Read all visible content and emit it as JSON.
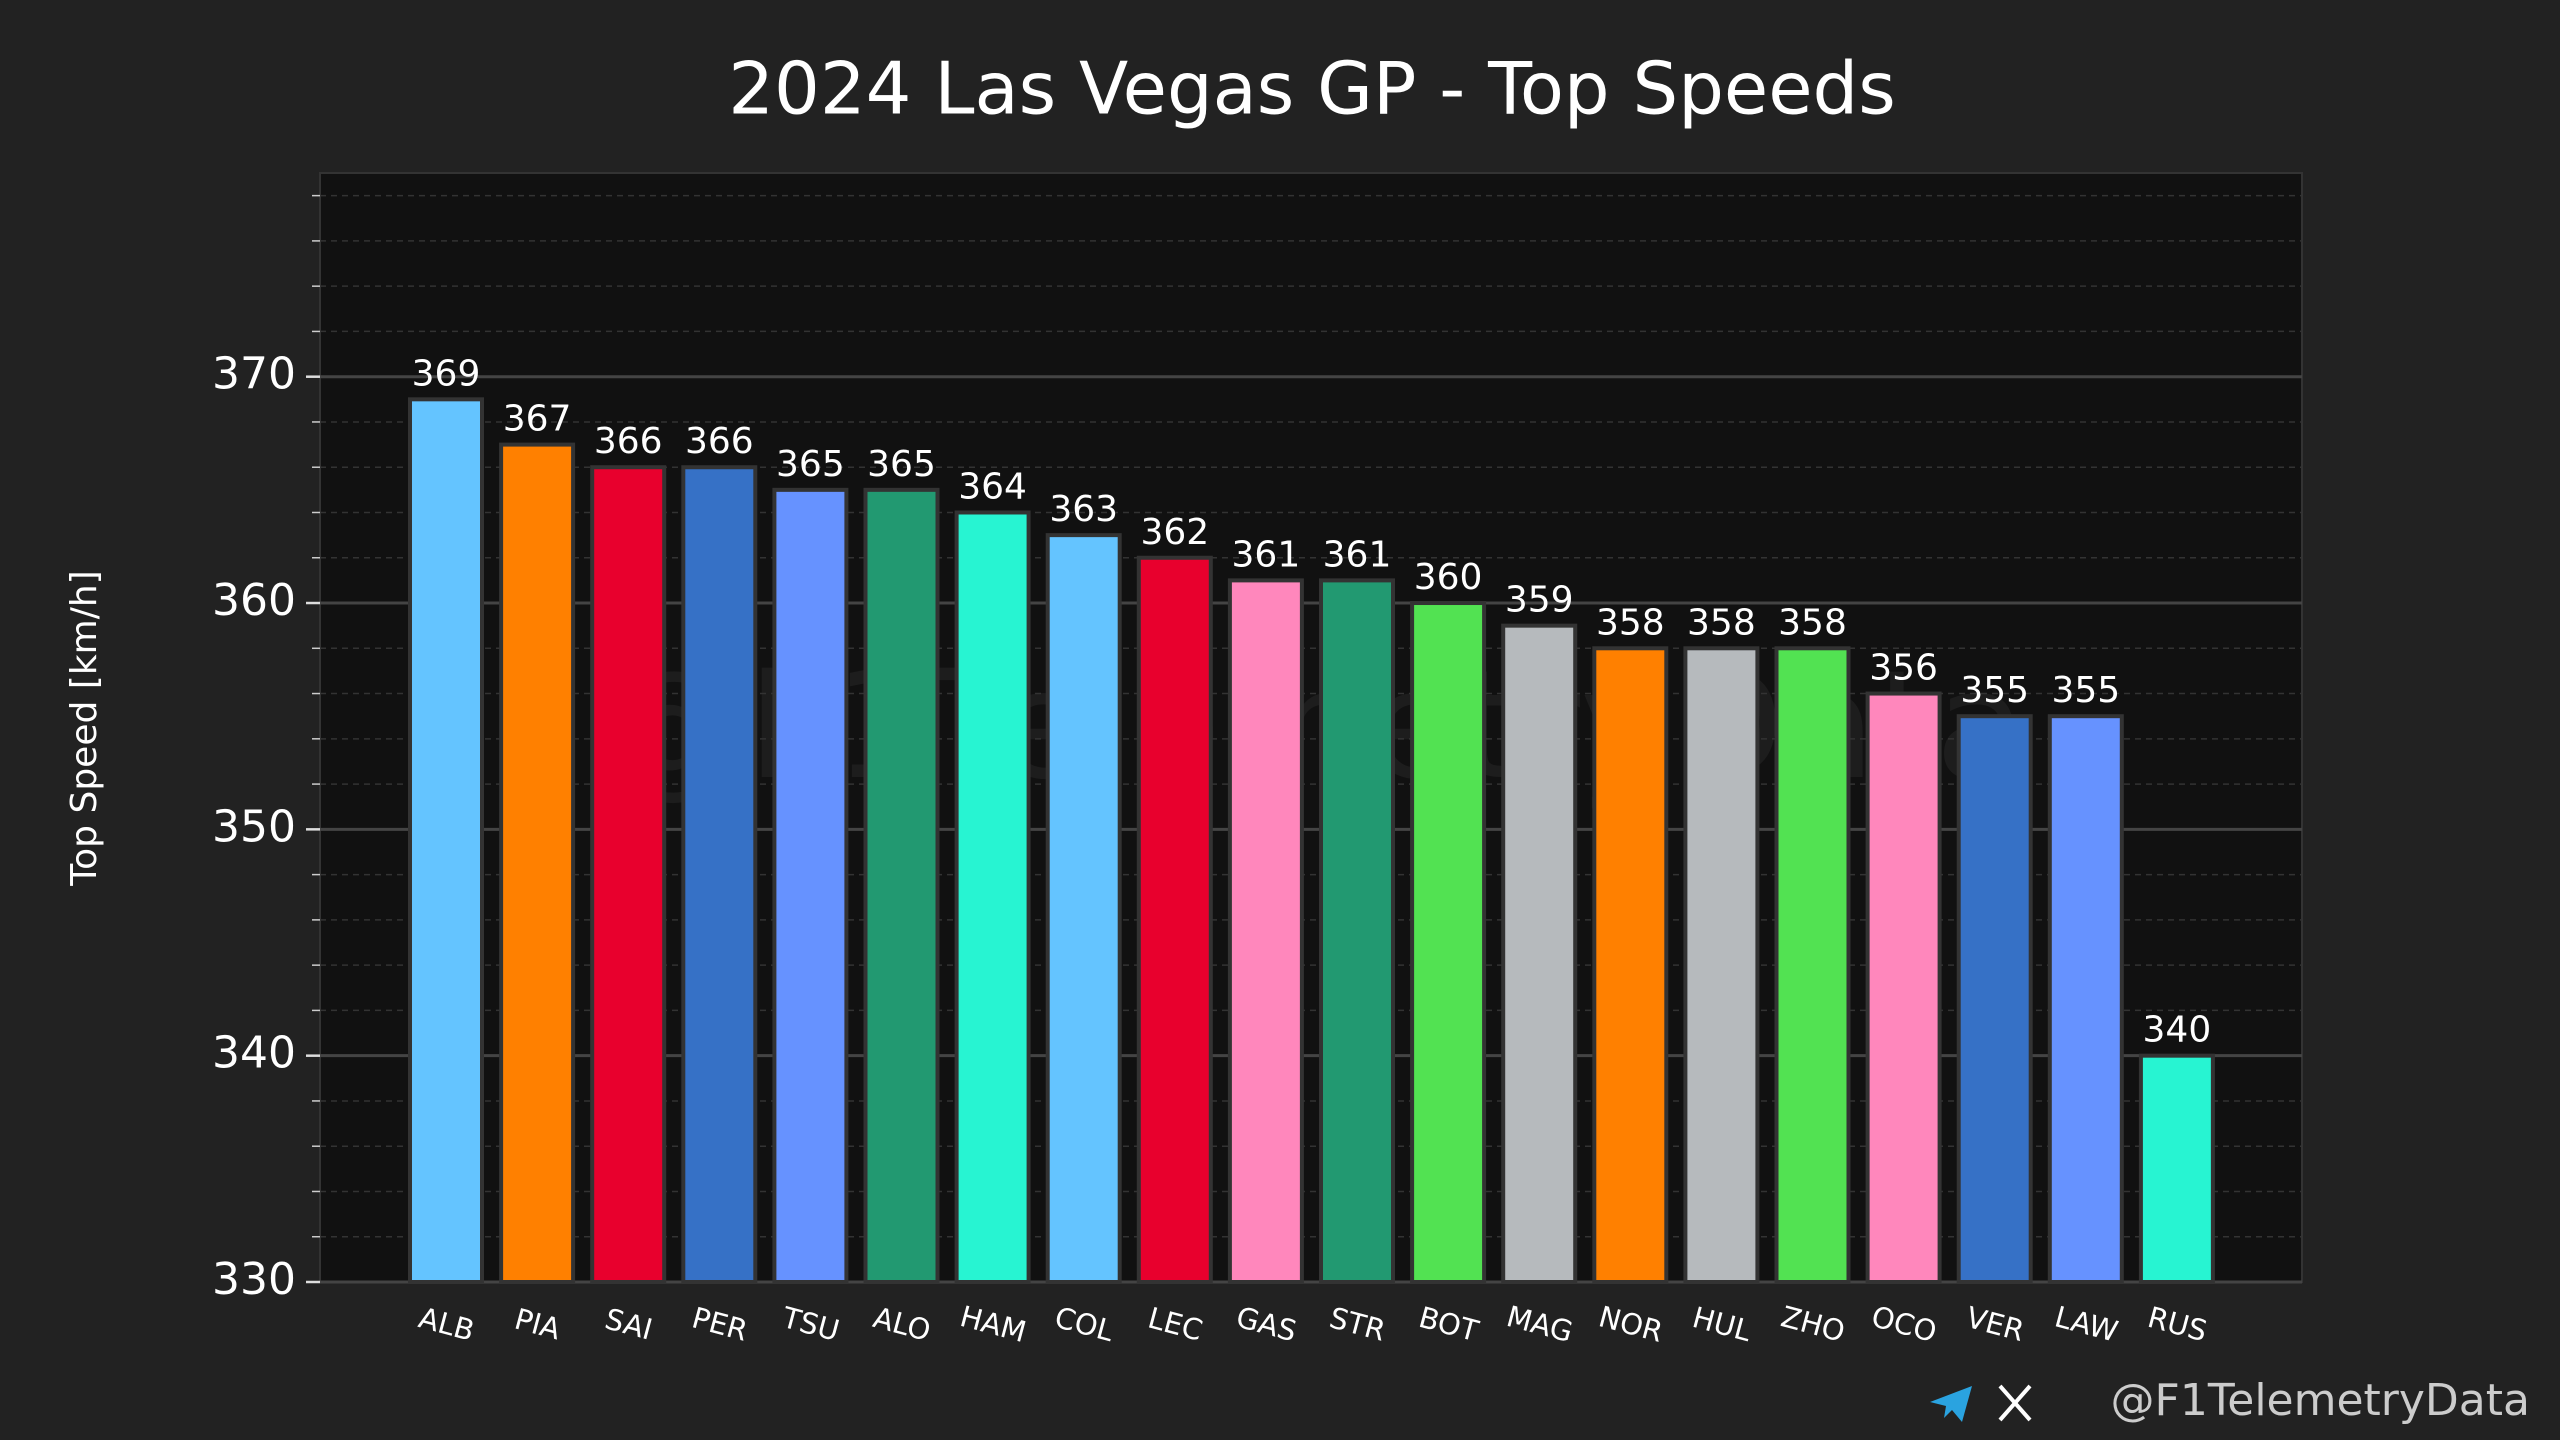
{
  "chart_data": {
    "type": "bar",
    "title": "2024 Las Vegas GP - Top Speeds",
    "ylabel": "Top Speed [km/h]",
    "watermark": "@F1TelemetryData",
    "footer": "@F1TelemetryData",
    "categories": [
      "ALB",
      "PIA",
      "SAI",
      "PER",
      "TSU",
      "ALO",
      "HAM",
      "COL",
      "LEC",
      "GAS",
      "STR",
      "BOT",
      "MAG",
      "NOR",
      "HUL",
      "ZHO",
      "OCO",
      "VER",
      "LAW",
      "RUS"
    ],
    "values": [
      369,
      367,
      366,
      366,
      365,
      365,
      364,
      363,
      362,
      361,
      361,
      360,
      359,
      358,
      358,
      358,
      356,
      355,
      355,
      340
    ],
    "colors": [
      "#64c4ff",
      "#ff8000",
      "#e8002d",
      "#3671c6",
      "#6692ff",
      "#229971",
      "#27f4d2",
      "#64c4ff",
      "#e8002d",
      "#ff87bc",
      "#229971",
      "#52e252",
      "#b6babd",
      "#ff8000",
      "#b6babd",
      "#52e252",
      "#ff87bc",
      "#3671c6",
      "#6692ff",
      "#27f4d2"
    ],
    "ylim": [
      330,
      379
    ],
    "yticks": [
      330,
      340,
      350,
      360,
      370
    ],
    "yminorticks": [
      332,
      334,
      336,
      338,
      342,
      344,
      346,
      348,
      352,
      354,
      356,
      358,
      362,
      364,
      366,
      368,
      372,
      374,
      376,
      378
    ],
    "grid": true
  }
}
